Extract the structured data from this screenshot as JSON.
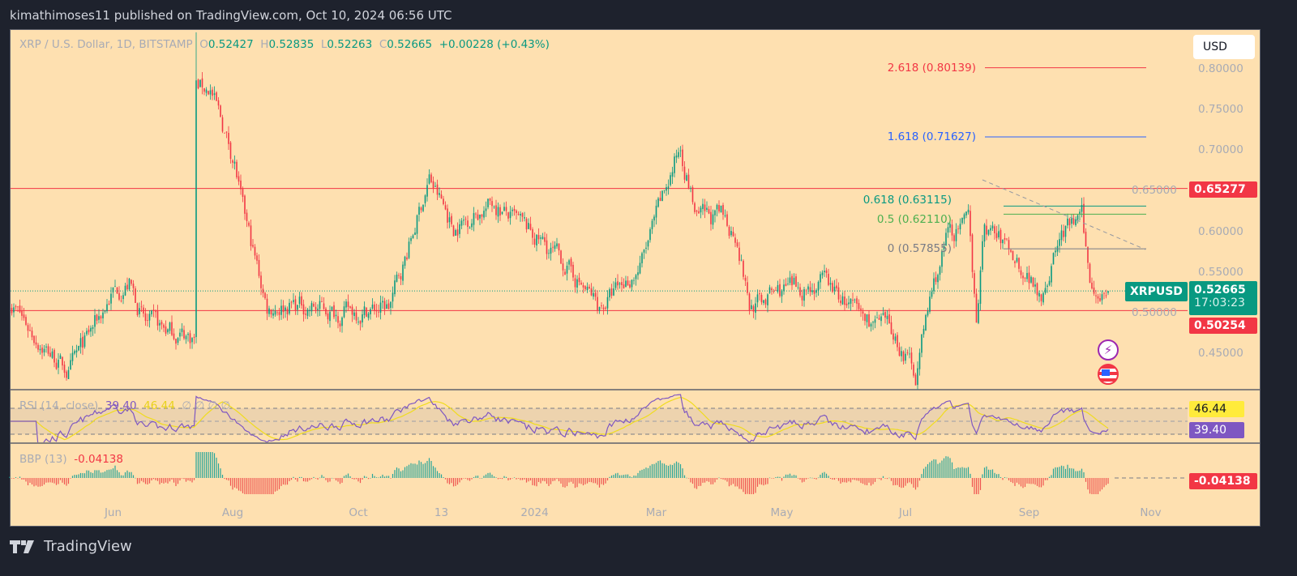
{
  "header": {
    "published": "kimathimoses11 published on TradingView.com, Oct 10, 2024 06:56 UTC"
  },
  "legend": {
    "symbol": "XRP / U.S. Dollar, 1D, BITSTAMP",
    "o_label": "O",
    "o": "0.52427",
    "h_label": "H",
    "h": "0.52835",
    "l_label": "L",
    "l": "0.52263",
    "c_label": "C",
    "c": "0.52665",
    "change": "+0.00228 (+0.43%)"
  },
  "currency_button": "USD",
  "price_axis": [
    "0.80000",
    "0.75000",
    "0.70000",
    "0.65000",
    "0.60000",
    "0.55000",
    "0.50000",
    "0.45000"
  ],
  "time_axis": [
    {
      "label": "Jun",
      "day": 51
    },
    {
      "label": "Aug",
      "day": 110
    },
    {
      "label": "Oct",
      "day": 172
    },
    {
      "label": "13",
      "day": 213
    },
    {
      "label": "2024",
      "day": 259
    },
    {
      "label": "Mar",
      "day": 319
    },
    {
      "label": "May",
      "day": 381
    },
    {
      "label": "Jul",
      "day": 442
    },
    {
      "label": "Sep",
      "day": 503
    },
    {
      "label": "Nov",
      "day": 563
    }
  ],
  "levels": {
    "resistance": {
      "value": 0.65277,
      "label": "0.65277"
    },
    "support": {
      "value": 0.50254,
      "label": "0.50254"
    },
    "current": {
      "value": 0.52665,
      "symbol": "XRPUSD",
      "price": "0.52665",
      "countdown": "17:03:23"
    }
  },
  "fib": [
    {
      "label": "2.618 (0.80139)",
      "value": 0.80139,
      "color": "#f23645"
    },
    {
      "label": "1.618 (0.71627)",
      "value": 0.71627,
      "color": "#2962ff"
    },
    {
      "label": "0.618 (0.63115)",
      "value": 0.63115,
      "color": "#089981"
    },
    {
      "label": "0.5 (0.62110)",
      "value": 0.6211,
      "color": "#4caf50"
    },
    {
      "label": "0 (0.57855)",
      "value": 0.57855,
      "color": "#787b86"
    }
  ],
  "rsi": {
    "title": "RSI (14, close)",
    "value": "39.40",
    "ma": "46.44",
    "extra": "∅ ∅ ∅ ∅",
    "color": "#7e57c2",
    "ma_color": "#f0dc1e"
  },
  "bbp": {
    "title": "BBP (13)",
    "value": "-0.04138"
  },
  "icons": [
    "lightning-event-icon",
    "us-flag-event-icon"
  ],
  "footer": {
    "brand": "TradingView"
  },
  "colors": {
    "up": "#089981",
    "down": "#f23645",
    "bg": "#fee0b0"
  },
  "chart_data": {
    "type": "candlestick",
    "title": "XRP / U.S. Dollar, 1D, BITSTAMP",
    "ylabel": "USD",
    "ylim": [
      0.41,
      0.85
    ],
    "start_date": "2023-04-11",
    "end_date": "2024-10-10",
    "approx_daily_close_anchors": [
      [
        0,
        0.516
      ],
      [
        11,
        0.476
      ],
      [
        29,
        0.426
      ],
      [
        51,
        0.526
      ],
      [
        59,
        0.536
      ],
      [
        67,
        0.486
      ],
      [
        89,
        0.471
      ],
      [
        91,
        0.47
      ],
      [
        92,
        0.78
      ],
      [
        99,
        0.775
      ],
      [
        111,
        0.685
      ],
      [
        115,
        0.625
      ],
      [
        127,
        0.506
      ],
      [
        139,
        0.511
      ],
      [
        163,
        0.5
      ],
      [
        187,
        0.506
      ],
      [
        195,
        0.565
      ],
      [
        207,
        0.665
      ],
      [
        219,
        0.605
      ],
      [
        239,
        0.635
      ],
      [
        247,
        0.616
      ],
      [
        263,
        0.585
      ],
      [
        275,
        0.556
      ],
      [
        291,
        0.506
      ],
      [
        311,
        0.556
      ],
      [
        323,
        0.645
      ],
      [
        331,
        0.705
      ],
      [
        339,
        0.616
      ],
      [
        351,
        0.616
      ],
      [
        359,
        0.596
      ],
      [
        365,
        0.506
      ],
      [
        379,
        0.526
      ],
      [
        403,
        0.536
      ],
      [
        419,
        0.496
      ],
      [
        435,
        0.476
      ],
      [
        447,
        0.426
      ],
      [
        455,
        0.526
      ],
      [
        463,
        0.596
      ],
      [
        473,
        0.606
      ],
      [
        477,
        0.496
      ],
      [
        481,
        0.606
      ],
      [
        491,
        0.585
      ],
      [
        509,
        0.526
      ],
      [
        519,
        0.596
      ],
      [
        529,
        0.616
      ],
      [
        533,
        0.536
      ],
      [
        542,
        0.52665
      ]
    ],
    "last_candle": {
      "open": 0.52427,
      "high": 0.52835,
      "low": 0.52263,
      "close": 0.52665
    }
  }
}
